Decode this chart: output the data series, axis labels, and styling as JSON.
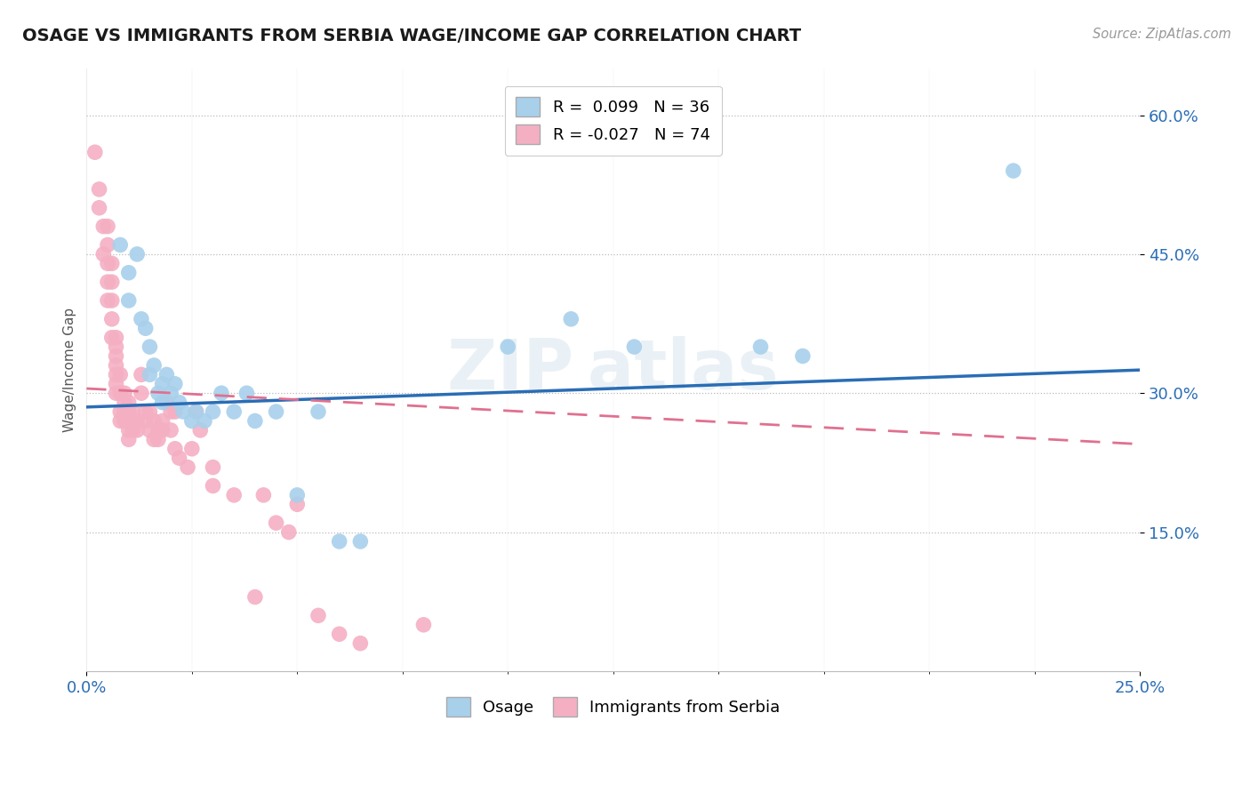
{
  "title": "OSAGE VS IMMIGRANTS FROM SERBIA WAGE/INCOME GAP CORRELATION CHART",
  "source": "Source: ZipAtlas.com",
  "ylabel_label": "Wage/Income Gap",
  "legend_blue_r": "R =  0.099",
  "legend_blue_n": "N = 36",
  "legend_pink_r": "R = -0.027",
  "legend_pink_n": "N = 74",
  "legend_label_blue": "Osage",
  "legend_label_pink": "Immigrants from Serbia",
  "blue_color": "#a8d0eb",
  "pink_color": "#f4afc3",
  "blue_line_color": "#2a6db5",
  "pink_line_color": "#e07090",
  "blue_points": [
    [
      0.008,
      0.46
    ],
    [
      0.01,
      0.43
    ],
    [
      0.01,
      0.4
    ],
    [
      0.012,
      0.45
    ],
    [
      0.013,
      0.38
    ],
    [
      0.014,
      0.37
    ],
    [
      0.015,
      0.35
    ],
    [
      0.015,
      0.32
    ],
    [
      0.016,
      0.33
    ],
    [
      0.017,
      0.3
    ],
    [
      0.018,
      0.31
    ],
    [
      0.018,
      0.29
    ],
    [
      0.019,
      0.32
    ],
    [
      0.02,
      0.3
    ],
    [
      0.021,
      0.31
    ],
    [
      0.022,
      0.29
    ],
    [
      0.023,
      0.28
    ],
    [
      0.025,
      0.27
    ],
    [
      0.026,
      0.28
    ],
    [
      0.028,
      0.27
    ],
    [
      0.03,
      0.28
    ],
    [
      0.032,
      0.3
    ],
    [
      0.035,
      0.28
    ],
    [
      0.038,
      0.3
    ],
    [
      0.04,
      0.27
    ],
    [
      0.045,
      0.28
    ],
    [
      0.05,
      0.19
    ],
    [
      0.055,
      0.28
    ],
    [
      0.06,
      0.14
    ],
    [
      0.065,
      0.14
    ],
    [
      0.1,
      0.35
    ],
    [
      0.115,
      0.38
    ],
    [
      0.13,
      0.35
    ],
    [
      0.16,
      0.35
    ],
    [
      0.17,
      0.34
    ],
    [
      0.22,
      0.54
    ]
  ],
  "pink_points": [
    [
      0.002,
      0.56
    ],
    [
      0.003,
      0.52
    ],
    [
      0.003,
      0.5
    ],
    [
      0.004,
      0.48
    ],
    [
      0.004,
      0.45
    ],
    [
      0.005,
      0.48
    ],
    [
      0.005,
      0.46
    ],
    [
      0.005,
      0.44
    ],
    [
      0.005,
      0.42
    ],
    [
      0.005,
      0.4
    ],
    [
      0.006,
      0.44
    ],
    [
      0.006,
      0.42
    ],
    [
      0.006,
      0.4
    ],
    [
      0.006,
      0.38
    ],
    [
      0.006,
      0.36
    ],
    [
      0.007,
      0.36
    ],
    [
      0.007,
      0.35
    ],
    [
      0.007,
      0.34
    ],
    [
      0.007,
      0.33
    ],
    [
      0.007,
      0.32
    ],
    [
      0.007,
      0.31
    ],
    [
      0.007,
      0.3
    ],
    [
      0.008,
      0.32
    ],
    [
      0.008,
      0.3
    ],
    [
      0.008,
      0.28
    ],
    [
      0.008,
      0.27
    ],
    [
      0.009,
      0.3
    ],
    [
      0.009,
      0.29
    ],
    [
      0.009,
      0.28
    ],
    [
      0.009,
      0.27
    ],
    [
      0.01,
      0.29
    ],
    [
      0.01,
      0.28
    ],
    [
      0.01,
      0.27
    ],
    [
      0.01,
      0.26
    ],
    [
      0.01,
      0.25
    ],
    [
      0.011,
      0.28
    ],
    [
      0.011,
      0.27
    ],
    [
      0.011,
      0.26
    ],
    [
      0.012,
      0.27
    ],
    [
      0.012,
      0.26
    ],
    [
      0.013,
      0.32
    ],
    [
      0.013,
      0.3
    ],
    [
      0.014,
      0.28
    ],
    [
      0.014,
      0.27
    ],
    [
      0.015,
      0.28
    ],
    [
      0.015,
      0.26
    ],
    [
      0.016,
      0.27
    ],
    [
      0.016,
      0.25
    ],
    [
      0.017,
      0.26
    ],
    [
      0.017,
      0.25
    ],
    [
      0.018,
      0.27
    ],
    [
      0.018,
      0.26
    ],
    [
      0.019,
      0.29
    ],
    [
      0.02,
      0.28
    ],
    [
      0.02,
      0.26
    ],
    [
      0.021,
      0.28
    ],
    [
      0.021,
      0.24
    ],
    [
      0.022,
      0.23
    ],
    [
      0.024,
      0.22
    ],
    [
      0.025,
      0.24
    ],
    [
      0.026,
      0.28
    ],
    [
      0.027,
      0.26
    ],
    [
      0.03,
      0.22
    ],
    [
      0.03,
      0.2
    ],
    [
      0.035,
      0.19
    ],
    [
      0.04,
      0.08
    ],
    [
      0.042,
      0.19
    ],
    [
      0.045,
      0.16
    ],
    [
      0.048,
      0.15
    ],
    [
      0.05,
      0.18
    ],
    [
      0.055,
      0.06
    ],
    [
      0.06,
      0.04
    ],
    [
      0.065,
      0.03
    ],
    [
      0.08,
      0.05
    ]
  ],
  "xlim": [
    0.0,
    0.25
  ],
  "ylim": [
    0.0,
    0.65
  ],
  "yticks": [
    0.15,
    0.3,
    0.45,
    0.6
  ],
  "ytick_labels": [
    "15.0%",
    "30.0%",
    "45.0%",
    "60.0%"
  ],
  "background_color": "#ffffff",
  "plot_bg_color": "#ffffff"
}
